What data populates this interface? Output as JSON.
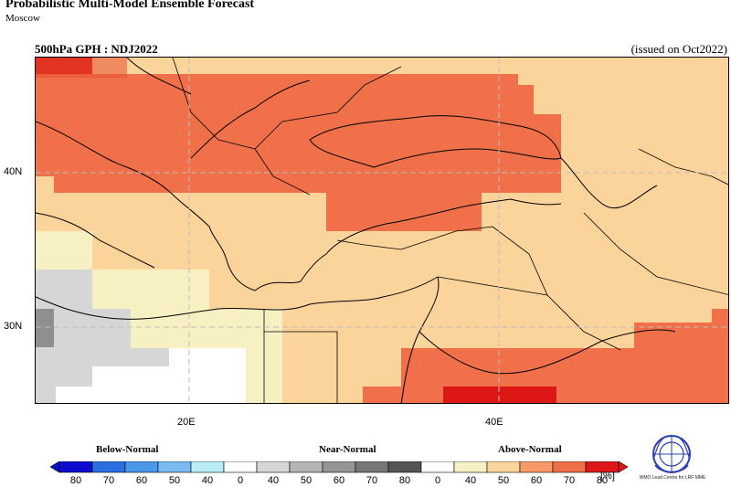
{
  "header": {
    "title": "Probabilistic Multi-Model Ensemble Forecast",
    "subtitle": "Moscow",
    "field_label": "500hPa GPH : NDJ2022",
    "issued": "(issued on Oct2022)"
  },
  "axes": {
    "lat_ticks": [
      "40N",
      "30N"
    ],
    "lon_ticks": [
      "20E",
      "40E"
    ]
  },
  "legend": {
    "categories": [
      "Below-Normal",
      "Near-Normal",
      "Above-Normal"
    ],
    "tick_labels": [
      "80",
      "70",
      "60",
      "50",
      "40",
      "0",
      "40",
      "50",
      "60",
      "70",
      "80",
      "0",
      "40",
      "50",
      "60",
      "70",
      "80"
    ],
    "unit": "[%]",
    "colors": {
      "below": [
        "#0c0ccd",
        "#2a6fe0",
        "#4b97ea",
        "#7ab9f2",
        "#b7eef8"
      ],
      "white": "#ffffff",
      "near": [
        "#d6d6d6",
        "#b4b4b4",
        "#959595",
        "#767676",
        "#555555"
      ],
      "above": [
        "#f7f0c3",
        "#fbd49c",
        "#f89a6a",
        "#f07149",
        "#dd1616"
      ]
    }
  },
  "logo": {
    "text": "WMO Lead Centre for LRF MME"
  }
}
